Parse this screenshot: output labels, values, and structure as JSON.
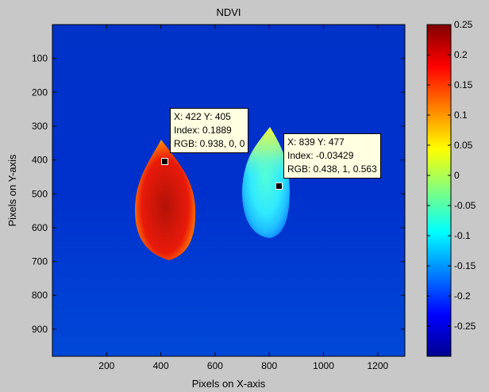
{
  "chart_data": {
    "type": "heatmap",
    "title": "NDVI",
    "xlabel": "Pixels on X-axis",
    "ylabel": "Pixels on Y-axis",
    "xlim": [
      0,
      1300
    ],
    "ylim": [
      0,
      980
    ],
    "x_ticks": [
      "200",
      "400",
      "600",
      "800",
      "1000",
      "1200"
    ],
    "x_tick_values": [
      200,
      400,
      600,
      800,
      1000,
      1200
    ],
    "y_ticks": [
      "100",
      "200",
      "300",
      "400",
      "500",
      "600",
      "700",
      "800",
      "900"
    ],
    "y_tick_values": [
      100,
      200,
      300,
      400,
      500,
      600,
      700,
      800,
      900
    ],
    "colorbar": {
      "colormap": "jet",
      "range": [
        -0.3,
        0.25
      ],
      "tick_labels": [
        "0.25",
        "0.2",
        "0.15",
        "0.1",
        "0.05",
        "0",
        "-0.05",
        "-0.1",
        "-0.15",
        "-0.2",
        "-0.25"
      ],
      "tick_values": [
        0.25,
        0.2,
        0.15,
        0.1,
        0.05,
        0,
        -0.05,
        -0.1,
        -0.15,
        -0.2,
        -0.25
      ]
    },
    "datatips": [
      {
        "x": 422,
        "y": 405,
        "line1": "X: 422 Y: 405",
        "line2": "Index: 0.1889",
        "line3": "RGB: 0.938, 0, 0"
      },
      {
        "x": 839,
        "y": 477,
        "line1": "X: 839 Y: 477",
        "line2": "Index: -0.03429",
        "line3": "RGB: 0.438, 1, 0.563"
      }
    ],
    "background_color": "#0028c8",
    "grid": false
  }
}
